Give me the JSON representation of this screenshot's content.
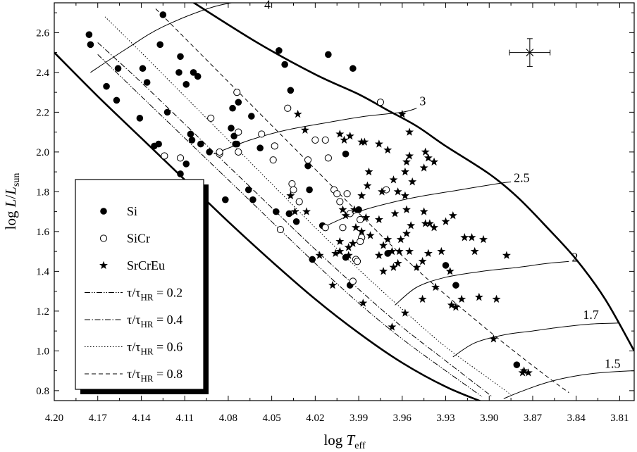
{
  "chart_data": {
    "type": "scatter",
    "xlabel": {
      "base": "log ",
      "var": "T",
      "sub": "eff"
    },
    "ylabel": {
      "base": "log ",
      "var": "L",
      "mid": "/",
      "var2": "L",
      "sub": "sun"
    },
    "xlim": [
      4.2,
      3.8
    ],
    "ylim": [
      0.75,
      2.75
    ],
    "x_reversed": true,
    "xticks": [
      "4.20",
      "4.17",
      "4.14",
      "4.11",
      "4.08",
      "4.05",
      "4.02",
      "3.99",
      "3.96",
      "3.93",
      "3.90",
      "3.87",
      "3.84",
      "3.81"
    ],
    "yticks": [
      "0.8",
      "1.0",
      "1.2",
      "1.4",
      "1.6",
      "1.8",
      "2.0",
      "2.2",
      "2.4",
      "2.6"
    ],
    "legend": {
      "position": "left",
      "entries": [
        {
          "label": "Si",
          "marker": "filled-circle"
        },
        {
          "label": "SiCr",
          "marker": "open-circle"
        },
        {
          "label": "SrCrEu",
          "marker": "star"
        },
        {
          "label": "τ/τ",
          "sub": "HR",
          "tail": " = 0.2",
          "style": "dash-dot-dot"
        },
        {
          "label": "τ/τ",
          "sub": "HR",
          "tail": " = 0.4",
          "style": "dash-dot"
        },
        {
          "label": "τ/τ",
          "sub": "HR",
          "tail": " = 0.6",
          "style": "dotted"
        },
        {
          "label": "τ/τ",
          "sub": "HR",
          "tail": " = 0.8",
          "style": "dashed"
        }
      ]
    },
    "error_bar": {
      "x": 3.872,
      "y": 2.5,
      "dx": 0.014,
      "dy": 0.07,
      "marker": "×"
    },
    "boundaries": {
      "zams": [
        [
          4.2,
          2.5
        ],
        [
          4.17,
          2.28
        ],
        [
          4.14,
          2.07
        ],
        [
          4.11,
          1.86
        ],
        [
          4.08,
          1.65
        ],
        [
          4.05,
          1.45
        ],
        [
          4.02,
          1.26
        ],
        [
          3.99,
          1.09
        ],
        [
          3.96,
          0.94
        ],
        [
          3.93,
          0.82
        ],
        [
          3.9,
          0.73
        ]
      ],
      "tams": [
        [
          4.108,
          2.77
        ],
        [
          4.06,
          2.55
        ],
        [
          4.02,
          2.39
        ],
        [
          3.99,
          2.29
        ],
        [
          3.97,
          2.21
        ],
        [
          3.95,
          2.13
        ],
        [
          3.93,
          2.03
        ],
        [
          3.9,
          1.89
        ],
        [
          3.88,
          1.77
        ],
        [
          3.86,
          1.62
        ],
        [
          3.84,
          1.46
        ],
        [
          3.82,
          1.26
        ],
        [
          3.8,
          1.0
        ]
      ]
    },
    "tracks": [
      {
        "label": "4",
        "points": [
          [
            4.175,
            2.4
          ],
          [
            4.15,
            2.52
          ],
          [
            4.125,
            2.63
          ],
          [
            4.09,
            2.73
          ],
          [
            4.06,
            2.77
          ]
        ]
      },
      {
        "label": "3",
        "points": [
          [
            4.09,
            1.99
          ],
          [
            4.065,
            2.06
          ],
          [
            4.04,
            2.11
          ],
          [
            4.01,
            2.15
          ],
          [
            3.985,
            2.18
          ],
          [
            3.96,
            2.2
          ],
          [
            3.95,
            2.22
          ]
        ]
      },
      {
        "label": "2.5",
        "points": [
          [
            4.015,
            1.62
          ],
          [
            3.99,
            1.7
          ],
          [
            3.965,
            1.75
          ],
          [
            3.945,
            1.78
          ],
          [
            3.92,
            1.81
          ],
          [
            3.895,
            1.84
          ],
          [
            3.885,
            1.85
          ]
        ]
      },
      {
        "label": "2",
        "points": [
          [
            3.965,
            1.23
          ],
          [
            3.95,
            1.32
          ],
          [
            3.93,
            1.37
          ],
          [
            3.905,
            1.4
          ],
          [
            3.88,
            1.42
          ],
          [
            3.86,
            1.44
          ],
          [
            3.845,
            1.45
          ]
        ]
      },
      {
        "label": "1.7",
        "points": [
          [
            3.925,
            0.97
          ],
          [
            3.91,
            1.04
          ],
          [
            3.89,
            1.08
          ],
          [
            3.87,
            1.1
          ],
          [
            3.85,
            1.12
          ],
          [
            3.83,
            1.135
          ],
          [
            3.81,
            1.14
          ]
        ]
      },
      {
        "label": "1.5",
        "points": [
          [
            3.89,
            0.76
          ],
          [
            3.88,
            0.79
          ],
          [
            3.865,
            0.83
          ],
          [
            3.85,
            0.86
          ],
          [
            3.83,
            0.885
          ],
          [
            3.81,
            0.897
          ],
          [
            3.8,
            0.9
          ]
        ]
      }
    ],
    "isochrones": [
      {
        "name": "0.2",
        "style": "dash-dot-dot",
        "points": [
          [
            4.17,
            2.49
          ],
          [
            4.14,
            2.28
          ],
          [
            4.11,
            2.07
          ],
          [
            4.08,
            1.86
          ],
          [
            4.05,
            1.65
          ],
          [
            4.02,
            1.44
          ],
          [
            3.99,
            1.24
          ],
          [
            3.96,
            1.06
          ],
          [
            3.93,
            0.9
          ],
          [
            3.905,
            0.77
          ]
        ]
      },
      {
        "name": "0.4",
        "style": "dash-dot",
        "points": [
          [
            4.17,
            2.55
          ],
          [
            4.14,
            2.35
          ],
          [
            4.11,
            2.14
          ],
          [
            4.08,
            1.93
          ],
          [
            4.05,
            1.72
          ],
          [
            4.02,
            1.51
          ],
          [
            3.99,
            1.31
          ],
          [
            3.96,
            1.12
          ],
          [
            3.93,
            0.95
          ],
          [
            3.898,
            0.77
          ]
        ]
      },
      {
        "name": "0.6",
        "style": "dotted",
        "points": [
          [
            4.165,
            2.68
          ],
          [
            4.14,
            2.5
          ],
          [
            4.11,
            2.28
          ],
          [
            4.08,
            2.06
          ],
          [
            4.05,
            1.84
          ],
          [
            4.02,
            1.62
          ],
          [
            3.99,
            1.41
          ],
          [
            3.96,
            1.21
          ],
          [
            3.93,
            1.02
          ],
          [
            3.9,
            0.86
          ],
          [
            3.885,
            0.78
          ]
        ]
      },
      {
        "name": "0.8",
        "style": "dashed",
        "points": [
          [
            4.13,
            2.72
          ],
          [
            4.1,
            2.5
          ],
          [
            4.07,
            2.28
          ],
          [
            4.04,
            2.06
          ],
          [
            4.01,
            1.84
          ],
          [
            3.98,
            1.62
          ],
          [
            3.95,
            1.41
          ],
          [
            3.92,
            1.22
          ],
          [
            3.89,
            1.04
          ],
          [
            3.86,
            0.87
          ],
          [
            3.845,
            0.79
          ]
        ]
      }
    ],
    "series": [
      {
        "name": "Si",
        "marker": "filled-circle",
        "points": [
          [
            4.176,
            2.59
          ],
          [
            4.175,
            2.54
          ],
          [
            4.125,
            2.69
          ],
          [
            4.127,
            2.54
          ],
          [
            4.156,
            2.42
          ],
          [
            4.164,
            2.33
          ],
          [
            4.157,
            2.26
          ],
          [
            4.139,
            2.42
          ],
          [
            4.136,
            2.35
          ],
          [
            4.141,
            2.17
          ],
          [
            4.131,
            2.03
          ],
          [
            4.128,
            2.04
          ],
          [
            4.122,
            2.2
          ],
          [
            4.113,
            2.48
          ],
          [
            4.114,
            2.4
          ],
          [
            4.109,
            2.34
          ],
          [
            4.104,
            2.4
          ],
          [
            4.101,
            2.38
          ],
          [
            4.106,
            2.09
          ],
          [
            4.105,
            2.06
          ],
          [
            4.099,
            2.04
          ],
          [
            4.093,
            2.0
          ],
          [
            4.109,
            1.94
          ],
          [
            4.113,
            1.89
          ],
          [
            4.082,
            1.76
          ],
          [
            4.077,
            2.22
          ],
          [
            4.073,
            2.25
          ],
          [
            4.078,
            2.12
          ],
          [
            4.076,
            2.08
          ],
          [
            4.074,
            2.04
          ],
          [
            4.075,
            2.04
          ],
          [
            4.064,
            2.18
          ],
          [
            4.058,
            2.02
          ],
          [
            4.066,
            1.81
          ],
          [
            4.063,
            1.76
          ],
          [
            4.045,
            2.51
          ],
          [
            4.041,
            2.44
          ],
          [
            4.037,
            2.31
          ],
          [
            4.025,
            1.93
          ],
          [
            4.024,
            1.81
          ],
          [
            4.015,
            1.63
          ],
          [
            4.047,
            1.7
          ],
          [
            4.038,
            1.69
          ],
          [
            4.033,
            1.65
          ],
          [
            4.022,
            1.46
          ],
          [
            4.011,
            2.49
          ],
          [
            3.994,
            2.42
          ],
          [
            3.999,
            1.99
          ],
          [
            3.99,
            1.71
          ],
          [
            3.999,
            1.47
          ],
          [
            3.97,
            1.49
          ],
          [
            3.996,
            1.33
          ],
          [
            3.93,
            1.43
          ],
          [
            3.923,
            1.33
          ],
          [
            3.881,
            0.93
          ]
        ]
      },
      {
        "name": "SiCr",
        "marker": "open-circle",
        "points": [
          [
            4.124,
            1.98
          ],
          [
            4.113,
            1.97
          ],
          [
            4.092,
            2.17
          ],
          [
            4.074,
            2.3
          ],
          [
            4.073,
            2.1
          ],
          [
            4.073,
            2.0
          ],
          [
            4.086,
            1.99
          ],
          [
            4.086,
            2.0
          ],
          [
            4.057,
            2.09
          ],
          [
            4.049,
            1.96
          ],
          [
            4.048,
            2.03
          ],
          [
            4.039,
            2.22
          ],
          [
            4.036,
            1.84
          ],
          [
            4.035,
            1.81
          ],
          [
            4.031,
            1.75
          ],
          [
            4.025,
            1.96
          ],
          [
            4.02,
            2.06
          ],
          [
            4.013,
            2.06
          ],
          [
            4.011,
            1.97
          ],
          [
            4.007,
            1.81
          ],
          [
            4.005,
            1.79
          ],
          [
            4.003,
            1.75
          ],
          [
            3.998,
            1.79
          ],
          [
            3.996,
            1.69
          ],
          [
            3.989,
            1.66
          ],
          [
            3.988,
            1.57
          ],
          [
            3.989,
            1.55
          ],
          [
            3.992,
            1.46
          ],
          [
            3.991,
            1.45
          ],
          [
            4.013,
            1.62
          ],
          [
            4.001,
            1.62
          ],
          [
            3.975,
            2.25
          ],
          [
            3.971,
            1.81
          ],
          [
            4.044,
            1.61
          ],
          [
            3.994,
            1.35
          ]
        ]
      },
      {
        "name": "SrCrEu",
        "marker": "star",
        "points": [
          [
            4.032,
            2.19
          ],
          [
            4.027,
            2.11
          ],
          [
            4.003,
            2.09
          ],
          [
            4.0,
            2.06
          ],
          [
            3.996,
            2.08
          ],
          [
            3.988,
            2.05
          ],
          [
            3.986,
            2.05
          ],
          [
            3.976,
            2.04
          ],
          [
            3.97,
            2.01
          ],
          [
            3.96,
            2.19
          ],
          [
            3.955,
            2.1
          ],
          [
            3.944,
            2.0
          ],
          [
            3.955,
            1.98
          ],
          [
            3.957,
            1.95
          ],
          [
            3.958,
            1.9
          ],
          [
            3.942,
            1.97
          ],
          [
            3.938,
            1.95
          ],
          [
            3.945,
            1.92
          ],
          [
            3.953,
            1.85
          ],
          [
            3.966,
            1.86
          ],
          [
            3.963,
            1.8
          ],
          [
            3.958,
            1.78
          ],
          [
            3.983,
            1.9
          ],
          [
            3.984,
            1.83
          ],
          [
            3.974,
            1.8
          ],
          [
            3.988,
            1.78
          ],
          [
            3.993,
            1.71
          ],
          [
            4.001,
            1.71
          ],
          [
            4.037,
            1.78
          ],
          [
            4.034,
            1.7
          ],
          [
            4.026,
            1.7
          ],
          [
            3.999,
            1.68
          ],
          [
            3.985,
            1.67
          ],
          [
            3.976,
            1.66
          ],
          [
            3.965,
            1.69
          ],
          [
            3.957,
            1.71
          ],
          [
            3.945,
            1.7
          ],
          [
            3.941,
            1.64
          ],
          [
            3.93,
            1.65
          ],
          [
            3.925,
            1.68
          ],
          [
            3.917,
            1.57
          ],
          [
            3.912,
            1.57
          ],
          [
            3.904,
            1.56
          ],
          [
            3.91,
            1.5
          ],
          [
            3.888,
            1.48
          ],
          [
            3.954,
            1.63
          ],
          [
            3.957,
            1.59
          ],
          [
            3.961,
            1.56
          ],
          [
            3.97,
            1.56
          ],
          [
            3.973,
            1.53
          ],
          [
            3.982,
            1.58
          ],
          [
            3.988,
            1.6
          ],
          [
            3.992,
            1.62
          ],
          [
            3.994,
            1.54
          ],
          [
            3.997,
            1.52
          ],
          [
            4.003,
            1.55
          ],
          [
            4.003,
            1.5
          ],
          [
            4.006,
            1.49
          ],
          [
            4.017,
            1.48
          ],
          [
            3.997,
            1.48
          ],
          [
            3.976,
            1.48
          ],
          [
            3.967,
            1.5
          ],
          [
            3.962,
            1.5
          ],
          [
            3.955,
            1.5
          ],
          [
            3.942,
            1.49
          ],
          [
            3.933,
            1.5
          ],
          [
            3.927,
            1.4
          ],
          [
            3.946,
            1.45
          ],
          [
            3.95,
            1.42
          ],
          [
            3.963,
            1.44
          ],
          [
            3.966,
            1.42
          ],
          [
            3.973,
            1.4
          ],
          [
            4.008,
            1.33
          ],
          [
            3.937,
            1.32
          ],
          [
            3.926,
            1.23
          ],
          [
            3.923,
            1.22
          ],
          [
            3.919,
            1.26
          ],
          [
            3.907,
            1.27
          ],
          [
            3.895,
            1.26
          ],
          [
            3.946,
            1.26
          ],
          [
            3.958,
            1.19
          ],
          [
            3.967,
            1.12
          ],
          [
            3.987,
            1.24
          ],
          [
            3.897,
            1.06
          ],
          [
            3.876,
            0.9
          ],
          [
            3.877,
            0.89
          ],
          [
            3.873,
            0.89
          ],
          [
            3.944,
            1.64
          ],
          [
            3.938,
            1.62
          ]
        ]
      }
    ]
  }
}
